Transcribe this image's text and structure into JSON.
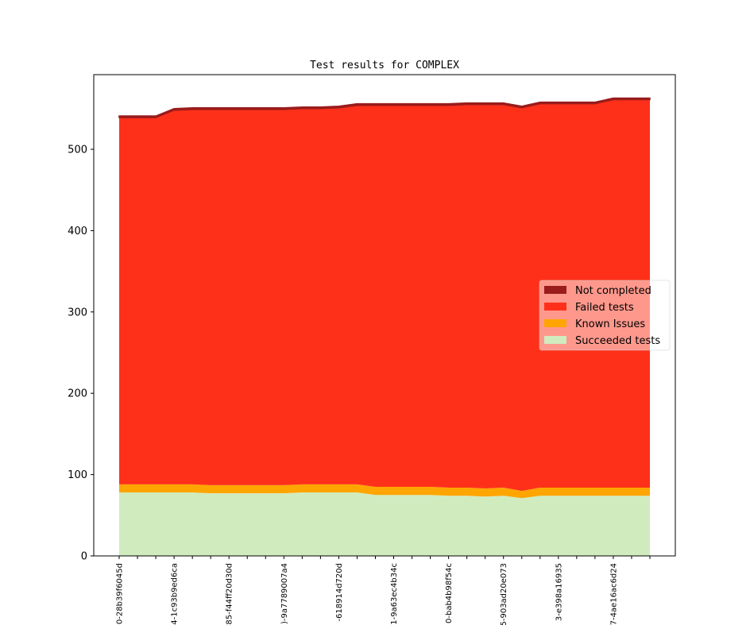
{
  "chart_data": {
    "type": "stacked-area",
    "title": "Test results for COMPLEX",
    "categories": [
      "0-28b39f6045d",
      null,
      null,
      "4-1c93b9ed6ca",
      null,
      null,
      "85-f44ff20d30d",
      null,
      null,
      ")-9a7789007a4",
      null,
      null,
      "-618914d720d",
      null,
      null,
      "1-9a63ec4b34c",
      null,
      null,
      "0-bab4b98f54c",
      null,
      null,
      "5-903ad20e073",
      null,
      null,
      "3-e398a16935",
      null,
      null,
      "7-4ae16ac6d24",
      null,
      null
    ],
    "series": [
      {
        "name": "Not completed",
        "color": "#9a1c1c",
        "values": [
          2,
          2,
          2,
          2,
          2,
          2,
          2,
          2,
          2,
          2,
          2,
          2,
          2,
          2,
          2,
          2,
          2,
          2,
          2,
          2,
          2,
          2,
          2,
          2,
          2,
          2,
          2,
          2,
          2,
          2
        ]
      },
      {
        "name": "Failed tests",
        "color": "#ff3019",
        "values": [
          451,
          451,
          451,
          460,
          461,
          462,
          462,
          462,
          462,
          462,
          462,
          462,
          463,
          466,
          469,
          469,
          469,
          469,
          470,
          471,
          472,
          471,
          471,
          472,
          472,
          472,
          472,
          477,
          477,
          477
        ]
      },
      {
        "name": "Known Issues",
        "color": "#ffa500",
        "values": [
          10,
          10,
          10,
          10,
          10,
          10,
          10,
          10,
          10,
          10,
          10,
          10,
          10,
          10,
          10,
          10,
          10,
          10,
          10,
          10,
          10,
          10,
          9,
          10,
          10,
          10,
          10,
          10,
          10,
          10
        ]
      },
      {
        "name": "Succeeded tests",
        "color": "#d0ecbf",
        "values": [
          78,
          78,
          78,
          78,
          78,
          77,
          77,
          77,
          77,
          77,
          78,
          78,
          78,
          78,
          75,
          75,
          75,
          75,
          74,
          74,
          73,
          74,
          71,
          74,
          74,
          74,
          74,
          74,
          74,
          74
        ]
      }
    ],
    "ylim": [
      0,
      591.8
    ],
    "yticks": [
      0,
      100,
      200,
      300,
      400,
      500
    ],
    "legend": "center right"
  }
}
